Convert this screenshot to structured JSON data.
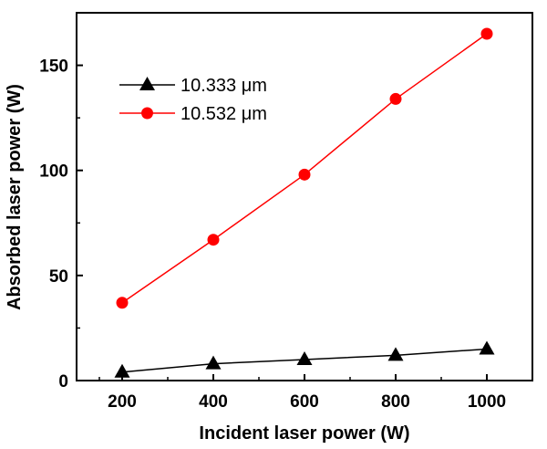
{
  "chart_data": {
    "type": "line",
    "title": "",
    "xlabel": "Incident laser power (W)",
    "ylabel": "Absorbed laser power (W)",
    "xlim": [
      100,
      1100
    ],
    "ylim": [
      0,
      175
    ],
    "xticks": [
      200,
      400,
      600,
      800,
      1000
    ],
    "yticks": [
      0,
      50,
      100,
      150
    ],
    "x": [
      200,
      400,
      600,
      800,
      1000
    ],
    "series": [
      {
        "name": "10.333 μm",
        "marker": "triangle",
        "color": "#000000",
        "values": [
          4,
          8,
          10,
          12,
          15
        ]
      },
      {
        "name": "10.532 μm",
        "marker": "circle",
        "color": "#ff0000",
        "values": [
          37,
          67,
          98,
          134,
          165
        ]
      }
    ],
    "legend": {
      "position": "top-left"
    },
    "grid": false
  }
}
